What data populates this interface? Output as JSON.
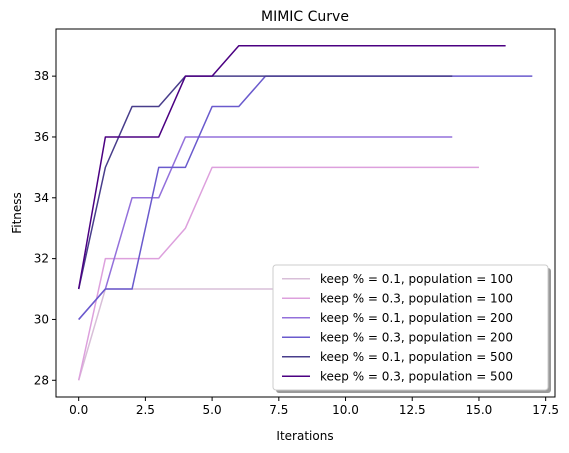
{
  "chart_data": {
    "type": "line",
    "title": "MIMIC Curve",
    "xlabel": "Iterations",
    "ylabel": "Fitness",
    "xlim": [
      -0.85,
      17.85
    ],
    "ylim": [
      27.45,
      39.55
    ],
    "xticks": [
      0.0,
      2.5,
      5.0,
      7.5,
      10.0,
      12.5,
      15.0,
      17.5
    ],
    "xtick_labels": [
      "0.0",
      "2.5",
      "5.0",
      "7.5",
      "10.0",
      "12.5",
      "15.0",
      "17.5"
    ],
    "yticks": [
      28,
      30,
      32,
      34,
      36,
      38
    ],
    "ytick_labels": [
      "28",
      "30",
      "32",
      "34",
      "36",
      "38"
    ],
    "grid": false,
    "legend_position": "bottom-right",
    "series": [
      {
        "name": "keep % = 0.1, population = 100",
        "color": "#d8bfd8",
        "x": [
          0,
          1,
          2,
          3,
          4,
          5,
          6,
          7,
          8,
          9,
          10,
          11,
          12,
          13,
          14,
          15,
          16,
          17
        ],
        "y": [
          28,
          31,
          31,
          31,
          31,
          31,
          31,
          31,
          31,
          31,
          31,
          31,
          31,
          31,
          31,
          31,
          31,
          31
        ]
      },
      {
        "name": "keep % = 0.3, population = 100",
        "color": "#dda0dd",
        "x": [
          0,
          1,
          2,
          3,
          4,
          5,
          6,
          7,
          8,
          9,
          10,
          11,
          12,
          13,
          14,
          15
        ],
        "y": [
          28,
          32,
          32,
          32,
          33,
          35,
          35,
          35,
          35,
          35,
          35,
          35,
          35,
          35,
          35,
          35
        ]
      },
      {
        "name": "keep % = 0.1, population = 200",
        "color": "#9370db",
        "x": [
          0,
          1,
          2,
          3,
          4,
          5,
          6,
          7,
          8,
          9,
          10,
          11,
          12,
          13,
          14
        ],
        "y": [
          30,
          31,
          34,
          34,
          36,
          36,
          36,
          36,
          36,
          36,
          36,
          36,
          36,
          36,
          36
        ]
      },
      {
        "name": "keep % = 0.3, population = 200",
        "color": "#6a5acd",
        "x": [
          0,
          1,
          2,
          3,
          4,
          5,
          6,
          7,
          8,
          9,
          10,
          11,
          12,
          13,
          14,
          15,
          16,
          17
        ],
        "y": [
          30,
          31,
          31,
          35,
          35,
          37,
          37,
          38,
          38,
          38,
          38,
          38,
          38,
          38,
          38,
          38,
          38,
          38
        ]
      },
      {
        "name": "keep % = 0.1, population = 500",
        "color": "#483d8b",
        "x": [
          0,
          1,
          2,
          3,
          4,
          5,
          6,
          7,
          8,
          9,
          10,
          11,
          12,
          13,
          14
        ],
        "y": [
          31,
          35,
          37,
          37,
          38,
          38,
          38,
          38,
          38,
          38,
          38,
          38,
          38,
          38,
          38
        ]
      },
      {
        "name": "keep % = 0.3, population = 500",
        "color": "#4b0082",
        "x": [
          0,
          1,
          2,
          3,
          4,
          5,
          6,
          7,
          8,
          9,
          10,
          11,
          12,
          13,
          14,
          15,
          16
        ],
        "y": [
          31,
          36,
          36,
          36,
          38,
          38,
          39,
          39,
          39,
          39,
          39,
          39,
          39,
          39,
          39,
          39,
          39
        ]
      }
    ]
  }
}
